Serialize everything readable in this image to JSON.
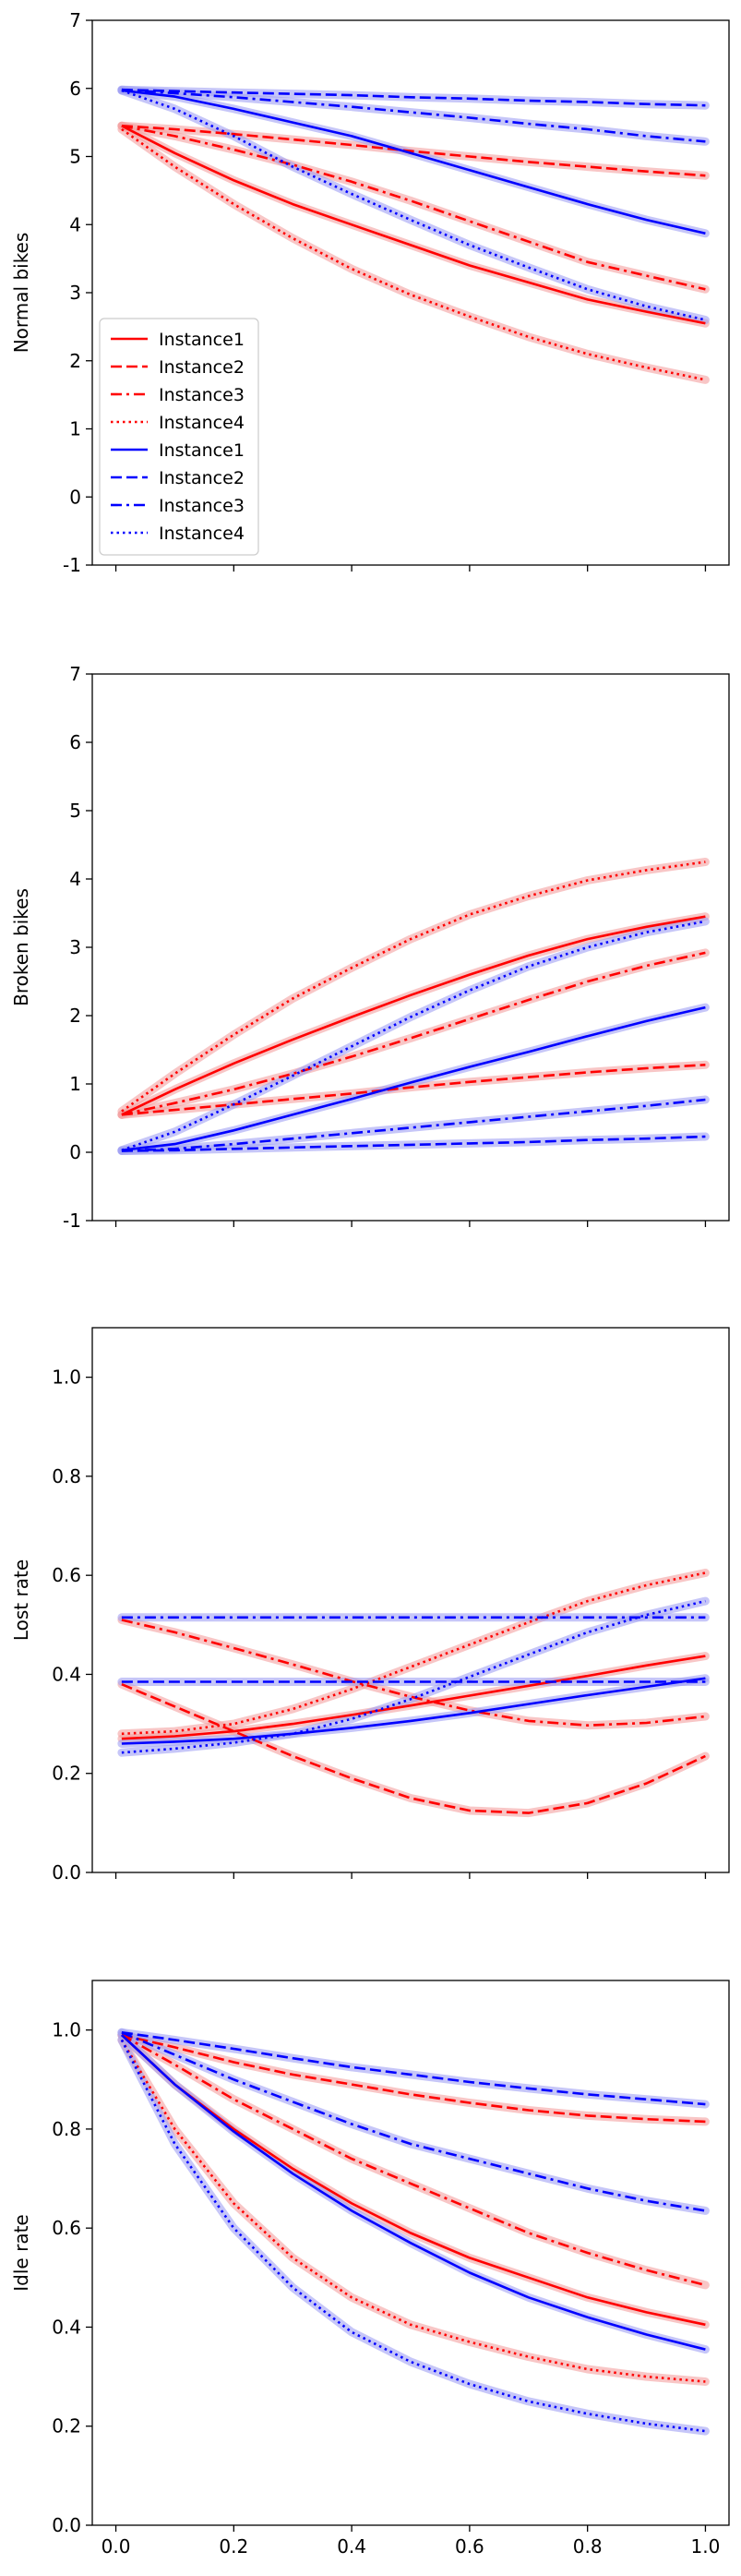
{
  "colors": {
    "red": "#ff0000",
    "blue": "#0000ff",
    "red_band": "#f4a0a0",
    "blue_band": "#a0a0f4"
  },
  "legend": {
    "placement": "center-left",
    "entries": [
      {
        "label": "Instance1",
        "color": "red",
        "dash": "solid"
      },
      {
        "label": "Instance2",
        "color": "red",
        "dash": "dashed"
      },
      {
        "label": "Instance3",
        "color": "red",
        "dash": "dashdot"
      },
      {
        "label": "Instance4",
        "color": "red",
        "dash": "dotted"
      },
      {
        "label": "Instance1",
        "color": "blue",
        "dash": "solid"
      },
      {
        "label": "Instance2",
        "color": "blue",
        "dash": "dashed"
      },
      {
        "label": "Instance3",
        "color": "blue",
        "dash": "dashdot"
      },
      {
        "label": "Instance4",
        "color": "blue",
        "dash": "dotted"
      }
    ]
  },
  "chart_data": [
    {
      "type": "line",
      "ylabel": "Normal bikes",
      "xlim": [
        -0.04,
        1.04
      ],
      "ylim": [
        -1,
        7
      ],
      "yticks": [
        "-1",
        "0",
        "1",
        "2",
        "3",
        "4",
        "5",
        "6",
        "7"
      ],
      "xticks": [
        "0.0",
        "0.2",
        "0.4",
        "0.6",
        "0.8",
        "1.0"
      ],
      "show_xtick_labels": false,
      "grid": false,
      "x": [
        0.01,
        0.1,
        0.2,
        0.3,
        0.4,
        0.5,
        0.6,
        0.7,
        0.8,
        0.9,
        1.0
      ],
      "series": [
        {
          "name": "Instance1",
          "color": "red",
          "dash": "solid",
          "values": [
            5.45,
            5.05,
            4.65,
            4.3,
            4.0,
            3.7,
            3.4,
            3.15,
            2.9,
            2.72,
            2.55
          ]
        },
        {
          "name": "Instance2",
          "color": "red",
          "dash": "dashed",
          "values": [
            5.45,
            5.4,
            5.33,
            5.25,
            5.17,
            5.08,
            5.0,
            4.92,
            4.85,
            4.78,
            4.72
          ]
        },
        {
          "name": "Instance3",
          "color": "red",
          "dash": "dashdot",
          "values": [
            5.45,
            5.3,
            5.1,
            4.88,
            4.63,
            4.35,
            4.05,
            3.75,
            3.45,
            3.25,
            3.05
          ]
        },
        {
          "name": "Instance4",
          "color": "red",
          "dash": "dotted",
          "values": [
            5.4,
            4.85,
            4.3,
            3.8,
            3.35,
            2.97,
            2.65,
            2.35,
            2.1,
            1.9,
            1.72
          ]
        },
        {
          "name": "Instance1",
          "color": "blue",
          "dash": "solid",
          "values": [
            5.97,
            5.88,
            5.7,
            5.5,
            5.3,
            5.05,
            4.8,
            4.55,
            4.3,
            4.07,
            3.87
          ]
        },
        {
          "name": "Instance2",
          "color": "blue",
          "dash": "dashed",
          "values": [
            5.98,
            5.96,
            5.94,
            5.92,
            5.9,
            5.87,
            5.85,
            5.82,
            5.8,
            5.77,
            5.75
          ]
        },
        {
          "name": "Instance3",
          "color": "blue",
          "dash": "dashdot",
          "values": [
            5.98,
            5.93,
            5.87,
            5.8,
            5.73,
            5.65,
            5.57,
            5.48,
            5.4,
            5.3,
            5.22
          ]
        },
        {
          "name": "Instance4",
          "color": "blue",
          "dash": "dotted",
          "values": [
            5.97,
            5.7,
            5.3,
            4.85,
            4.45,
            4.07,
            3.7,
            3.37,
            3.05,
            2.8,
            2.6
          ]
        }
      ]
    },
    {
      "type": "line",
      "ylabel": "Broken bikes",
      "xlim": [
        -0.04,
        1.04
      ],
      "ylim": [
        -1,
        7
      ],
      "yticks": [
        "-1",
        "0",
        "1",
        "2",
        "3",
        "4",
        "5",
        "6",
        "7"
      ],
      "xticks": [
        "0.0",
        "0.2",
        "0.4",
        "0.6",
        "0.8",
        "1.0"
      ],
      "show_xtick_labels": false,
      "grid": false,
      "x": [
        0.01,
        0.1,
        0.2,
        0.3,
        0.4,
        0.5,
        0.6,
        0.7,
        0.8,
        0.9,
        1.0
      ],
      "series": [
        {
          "name": "Instance1",
          "color": "red",
          "dash": "solid",
          "values": [
            0.55,
            0.92,
            1.3,
            1.65,
            1.98,
            2.3,
            2.6,
            2.88,
            3.12,
            3.3,
            3.45
          ]
        },
        {
          "name": "Instance2",
          "color": "red",
          "dash": "dashed",
          "values": [
            0.55,
            0.62,
            0.7,
            0.78,
            0.86,
            0.95,
            1.03,
            1.1,
            1.17,
            1.23,
            1.28
          ]
        },
        {
          "name": "Instance3",
          "color": "red",
          "dash": "dashdot",
          "values": [
            0.55,
            0.72,
            0.92,
            1.15,
            1.4,
            1.67,
            1.95,
            2.23,
            2.5,
            2.73,
            2.92
          ]
        },
        {
          "name": "Instance4",
          "color": "red",
          "dash": "dotted",
          "values": [
            0.6,
            1.15,
            1.72,
            2.25,
            2.7,
            3.12,
            3.48,
            3.75,
            3.98,
            4.13,
            4.25
          ]
        },
        {
          "name": "Instance1",
          "color": "blue",
          "dash": "solid",
          "values": [
            0.03,
            0.12,
            0.32,
            0.55,
            0.78,
            1.02,
            1.25,
            1.47,
            1.7,
            1.92,
            2.12
          ]
        },
        {
          "name": "Instance2",
          "color": "blue",
          "dash": "dashed",
          "values": [
            0.02,
            0.03,
            0.05,
            0.07,
            0.09,
            0.11,
            0.13,
            0.15,
            0.18,
            0.2,
            0.23
          ]
        },
        {
          "name": "Instance3",
          "color": "blue",
          "dash": "dashdot",
          "values": [
            0.02,
            0.05,
            0.12,
            0.2,
            0.28,
            0.36,
            0.44,
            0.52,
            0.6,
            0.68,
            0.77
          ]
        },
        {
          "name": "Instance4",
          "color": "blue",
          "dash": "dotted",
          "values": [
            0.03,
            0.3,
            0.7,
            1.12,
            1.55,
            1.98,
            2.37,
            2.72,
            3.0,
            3.22,
            3.38
          ]
        }
      ]
    },
    {
      "type": "line",
      "ylabel": "Lost rate",
      "xlim": [
        -0.04,
        1.04
      ],
      "ylim": [
        0.0,
        1.1
      ],
      "yticks": [
        "0.0",
        "0.2",
        "0.4",
        "0.6",
        "0.8",
        "1.0"
      ],
      "xticks": [
        "0.0",
        "0.2",
        "0.4",
        "0.6",
        "0.8",
        "1.0"
      ],
      "show_xtick_labels": false,
      "grid": false,
      "x": [
        0.01,
        0.1,
        0.2,
        0.3,
        0.4,
        0.5,
        0.6,
        0.7,
        0.8,
        0.9,
        1.0
      ],
      "series": [
        {
          "name": "Instance1",
          "color": "red",
          "dash": "solid",
          "values": [
            0.27,
            0.275,
            0.285,
            0.3,
            0.318,
            0.337,
            0.357,
            0.377,
            0.397,
            0.418,
            0.437
          ]
        },
        {
          "name": "Instance2",
          "color": "red",
          "dash": "dashed",
          "values": [
            0.38,
            0.335,
            0.285,
            0.235,
            0.19,
            0.15,
            0.125,
            0.12,
            0.14,
            0.18,
            0.235
          ]
        },
        {
          "name": "Instance3",
          "color": "red",
          "dash": "dashdot",
          "values": [
            0.51,
            0.485,
            0.453,
            0.42,
            0.386,
            0.355,
            0.327,
            0.306,
            0.297,
            0.302,
            0.315
          ]
        },
        {
          "name": "Instance4",
          "color": "red",
          "dash": "dotted",
          "values": [
            0.28,
            0.285,
            0.3,
            0.33,
            0.37,
            0.415,
            0.46,
            0.505,
            0.548,
            0.58,
            0.605
          ]
        },
        {
          "name": "Instance1",
          "color": "blue",
          "dash": "solid",
          "values": [
            0.26,
            0.264,
            0.27,
            0.28,
            0.292,
            0.306,
            0.322,
            0.34,
            0.358,
            0.375,
            0.392
          ]
        },
        {
          "name": "Instance2",
          "color": "blue",
          "dash": "dashed",
          "values": [
            0.385,
            0.385,
            0.385,
            0.385,
            0.385,
            0.385,
            0.385,
            0.385,
            0.385,
            0.385,
            0.385
          ]
        },
        {
          "name": "Instance3",
          "color": "blue",
          "dash": "dashdot",
          "values": [
            0.515,
            0.515,
            0.515,
            0.515,
            0.515,
            0.515,
            0.515,
            0.515,
            0.515,
            0.515,
            0.515
          ]
        },
        {
          "name": "Instance4",
          "color": "blue",
          "dash": "dotted",
          "values": [
            0.242,
            0.25,
            0.262,
            0.28,
            0.31,
            0.35,
            0.395,
            0.44,
            0.485,
            0.52,
            0.548
          ]
        }
      ]
    },
    {
      "type": "line",
      "ylabel": "Idle rate",
      "xlim": [
        -0.04,
        1.04
      ],
      "ylim": [
        0.0,
        1.1
      ],
      "yticks": [
        "0.0",
        "0.2",
        "0.4",
        "0.6",
        "0.8",
        "1.0"
      ],
      "xticks": [
        "0.0",
        "0.2",
        "0.4",
        "0.6",
        "0.8",
        "1.0"
      ],
      "show_xtick_labels": true,
      "grid": false,
      "x": [
        0.01,
        0.1,
        0.2,
        0.3,
        0.4,
        0.5,
        0.6,
        0.7,
        0.8,
        0.9,
        1.0
      ],
      "series": [
        {
          "name": "Instance1",
          "color": "red",
          "dash": "solid",
          "values": [
            0.99,
            0.89,
            0.8,
            0.72,
            0.65,
            0.59,
            0.54,
            0.5,
            0.46,
            0.43,
            0.405
          ]
        },
        {
          "name": "Instance2",
          "color": "red",
          "dash": "dashed",
          "values": [
            0.99,
            0.965,
            0.935,
            0.91,
            0.89,
            0.87,
            0.853,
            0.838,
            0.827,
            0.82,
            0.815
          ]
        },
        {
          "name": "Instance3",
          "color": "red",
          "dash": "dashdot",
          "values": [
            0.99,
            0.93,
            0.86,
            0.8,
            0.74,
            0.69,
            0.64,
            0.59,
            0.55,
            0.515,
            0.485
          ]
        },
        {
          "name": "Instance4",
          "color": "red",
          "dash": "dotted",
          "values": [
            0.98,
            0.8,
            0.65,
            0.54,
            0.46,
            0.405,
            0.37,
            0.34,
            0.315,
            0.3,
            0.29
          ]
        },
        {
          "name": "Instance1",
          "color": "blue",
          "dash": "solid",
          "values": [
            0.99,
            0.89,
            0.795,
            0.71,
            0.635,
            0.57,
            0.51,
            0.46,
            0.42,
            0.385,
            0.355
          ]
        },
        {
          "name": "Instance2",
          "color": "blue",
          "dash": "dashed",
          "values": [
            0.995,
            0.98,
            0.962,
            0.943,
            0.925,
            0.91,
            0.895,
            0.882,
            0.87,
            0.86,
            0.85
          ]
        },
        {
          "name": "Instance3",
          "color": "blue",
          "dash": "dashdot",
          "values": [
            0.995,
            0.95,
            0.9,
            0.855,
            0.81,
            0.77,
            0.74,
            0.71,
            0.68,
            0.655,
            0.635
          ]
        },
        {
          "name": "Instance4",
          "color": "blue",
          "dash": "dotted",
          "values": [
            0.98,
            0.77,
            0.6,
            0.48,
            0.39,
            0.33,
            0.285,
            0.25,
            0.225,
            0.205,
            0.19
          ]
        }
      ]
    }
  ]
}
